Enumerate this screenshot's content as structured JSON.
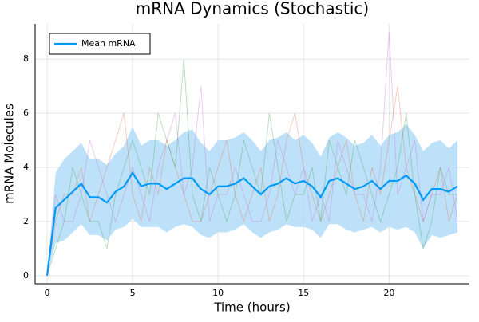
{
  "chart_data": {
    "type": "line",
    "title": "mRNA Dynamics (Stochastic)",
    "xlabel": "Time (hours)",
    "ylabel": "mRNA Molecules",
    "x": [
      0,
      0.5,
      1,
      1.5,
      2,
      2.5,
      3,
      3.5,
      4,
      4.5,
      5,
      5.5,
      6,
      6.5,
      7,
      7.5,
      8,
      8.5,
      9,
      9.5,
      10,
      10.5,
      11,
      11.5,
      12,
      12.5,
      13,
      13.5,
      14,
      14.5,
      15,
      15.5,
      16,
      16.5,
      17,
      17.5,
      18,
      18.5,
      19,
      19.5,
      20,
      20.5,
      21,
      21.5,
      22,
      22.5,
      23,
      23.5,
      24
    ],
    "band": {
      "color": "#b3dcf9",
      "lower": [
        0,
        1.2,
        1.3,
        1.6,
        1.9,
        1.5,
        1.5,
        1.3,
        1.7,
        1.8,
        2.1,
        1.8,
        1.8,
        1.8,
        1.6,
        1.8,
        1.9,
        1.8,
        1.5,
        1.4,
        1.6,
        1.6,
        1.7,
        1.9,
        1.6,
        1.4,
        1.6,
        1.7,
        1.9,
        1.8,
        1.8,
        1.7,
        1.4,
        1.9,
        1.9,
        1.7,
        1.6,
        1.7,
        1.8,
        1.6,
        1.8,
        1.7,
        1.8,
        1.6,
        1.0,
        1.5,
        1.4,
        1.5,
        1.6
      ],
      "upper": [
        0,
        3.8,
        4.3,
        4.6,
        4.9,
        4.3,
        4.3,
        4.1,
        4.5,
        4.8,
        5.5,
        4.8,
        5.0,
        5.0,
        4.8,
        5.0,
        5.3,
        5.4,
        4.9,
        4.6,
        5.0,
        5.0,
        5.1,
        5.3,
        5.0,
        4.6,
        5.0,
        5.1,
        5.3,
        5.0,
        5.2,
        4.9,
        4.4,
        5.1,
        5.3,
        5.1,
        4.8,
        4.9,
        5.2,
        4.8,
        5.2,
        5.3,
        5.6,
        5.2,
        4.6,
        4.9,
        5.0,
        4.7,
        5.0
      ]
    },
    "traces": [
      {
        "color": "#e26f46",
        "values": [
          0,
          2,
          3,
          3,
          4,
          2,
          3,
          4,
          5,
          6,
          3,
          2,
          4,
          3,
          5,
          4,
          3,
          2,
          2,
          3,
          4,
          5,
          3,
          2,
          3,
          4,
          2,
          3,
          5,
          6,
          4,
          3,
          2,
          3,
          4,
          5,
          3,
          2,
          4,
          3,
          5,
          7,
          4,
          3,
          2,
          3,
          4,
          2,
          3
        ]
      },
      {
        "color": "#3da44d",
        "values": [
          0,
          1,
          2,
          4,
          3,
          2,
          2,
          1,
          3,
          4,
          5,
          4,
          3,
          6,
          5,
          4,
          8,
          3,
          2,
          4,
          3,
          2,
          3,
          5,
          4,
          3,
          6,
          4,
          2,
          3,
          3,
          4,
          2,
          5,
          4,
          3,
          5,
          4,
          3,
          2,
          3,
          4,
          6,
          3,
          1,
          2,
          4,
          3,
          3
        ]
      },
      {
        "color": "#c271d2",
        "values": [
          0,
          3,
          2,
          2,
          3,
          5,
          4,
          3,
          2,
          3,
          4,
          3,
          2,
          4,
          5,
          6,
          3,
          4,
          7,
          2,
          3,
          3,
          4,
          3,
          2,
          2,
          3,
          5,
          4,
          3,
          4,
          2,
          3,
          2,
          5,
          4,
          3,
          3,
          2,
          4,
          9,
          3,
          4,
          5,
          2,
          3,
          3,
          4,
          2
        ]
      }
    ],
    "series": [
      {
        "name": "Mean mRNA",
        "color": "#009af9",
        "values": [
          0,
          2.5,
          2.8,
          3.1,
          3.4,
          2.9,
          2.9,
          2.7,
          3.1,
          3.3,
          3.8,
          3.3,
          3.4,
          3.4,
          3.2,
          3.4,
          3.6,
          3.6,
          3.2,
          3.0,
          3.3,
          3.3,
          3.4,
          3.6,
          3.3,
          3.0,
          3.3,
          3.4,
          3.6,
          3.4,
          3.5,
          3.3,
          2.9,
          3.5,
          3.6,
          3.4,
          3.2,
          3.3,
          3.5,
          3.2,
          3.5,
          3.5,
          3.7,
          3.4,
          2.8,
          3.2,
          3.2,
          3.1,
          3.3
        ]
      }
    ],
    "xlim": [
      -0.7,
      24.7
    ],
    "xticks": [
      0,
      5,
      10,
      15,
      20
    ],
    "ylim": [
      -0.3,
      9.3
    ],
    "yticks": [
      0,
      2,
      4,
      6,
      8
    ],
    "grid": true,
    "legend": "top-left"
  }
}
